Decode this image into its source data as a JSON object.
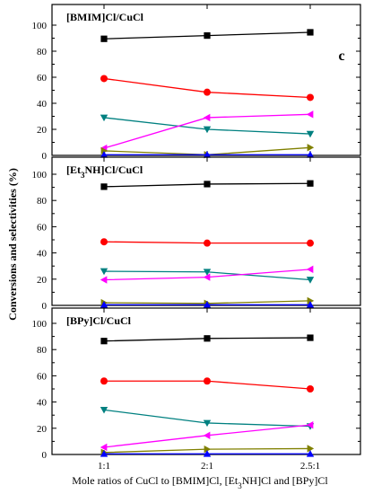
{
  "chart_data": {
    "type": "line",
    "panel_letter": "c",
    "ylabel": "Conversions and selectivities (%)",
    "xlabel": "Mole ratios of CuCl to [BMIM]Cl, [Et3NH]Cl and [BPy]Cl",
    "xlabel_parts": {
      "p1": "Mole ratios of CuCl to [BMIM]Cl, [Et",
      "sub": "3",
      "p2": "NH]Cl and [BPy]Cl"
    },
    "categories": [
      "1:1",
      "2:1",
      "2.5:1"
    ],
    "ylim": [
      0,
      110
    ],
    "yticks": [
      0,
      20,
      40,
      60,
      80,
      100
    ],
    "grid": false,
    "panels": [
      {
        "label": "[BMIM]Cl/CuCl",
        "label_parts": {
          "p1": "[BMIM]Cl/CuCl",
          "sub": "",
          "p2": ""
        },
        "series": [
          {
            "marker": "square",
            "color": "#000000",
            "values": [
              89.5,
              92.0,
              94.5
            ]
          },
          {
            "marker": "circle",
            "color": "#ff0000",
            "values": [
              59.0,
              48.5,
              44.5
            ]
          },
          {
            "marker": "triangle-down",
            "color": "#008080",
            "values": [
              29.0,
              20.0,
              16.5
            ]
          },
          {
            "marker": "triangle-left",
            "color": "#ff00ff",
            "values": [
              5.5,
              29.0,
              31.5
            ]
          },
          {
            "marker": "triangle-right",
            "color": "#808000",
            "values": [
              3.5,
              0.5,
              6.0
            ]
          },
          {
            "marker": "triangle-up",
            "color": "#0000ff",
            "values": [
              0.5,
              0.5,
              0.5
            ]
          }
        ]
      },
      {
        "label": "[Et3NH]Cl/CuCl",
        "label_parts": {
          "p1": "[Et",
          "sub": "3",
          "p2": "NH]Cl/CuCl"
        },
        "series": [
          {
            "marker": "square",
            "color": "#000000",
            "values": [
              90.5,
              92.5,
              93.0
            ]
          },
          {
            "marker": "circle",
            "color": "#ff0000",
            "values": [
              48.5,
              47.5,
              47.5
            ]
          },
          {
            "marker": "triangle-down",
            "color": "#008080",
            "values": [
              26.0,
              25.5,
              19.5
            ]
          },
          {
            "marker": "triangle-left",
            "color": "#ff00ff",
            "values": [
              19.5,
              21.5,
              27.5
            ]
          },
          {
            "marker": "triangle-right",
            "color": "#808000",
            "values": [
              2.0,
              1.5,
              3.5
            ]
          },
          {
            "marker": "triangle-up",
            "color": "#0000ff",
            "values": [
              0.5,
              0.5,
              0.5
            ]
          }
        ]
      },
      {
        "label": "[BPy]Cl/CuCl",
        "label_parts": {
          "p1": "[BPy]Cl/CuCl",
          "sub": "",
          "p2": ""
        },
        "series": [
          {
            "marker": "square",
            "color": "#000000",
            "values": [
              86.5,
              88.5,
              89.0
            ]
          },
          {
            "marker": "circle",
            "color": "#ff0000",
            "values": [
              56.0,
              56.0,
              50.0
            ]
          },
          {
            "marker": "triangle-down",
            "color": "#008080",
            "values": [
              34.0,
              24.0,
              21.5
            ]
          },
          {
            "marker": "triangle-left",
            "color": "#ff00ff",
            "values": [
              5.5,
              14.5,
              22.5
            ]
          },
          {
            "marker": "triangle-right",
            "color": "#808000",
            "values": [
              1.5,
              4.0,
              4.5
            ]
          },
          {
            "marker": "triangle-up",
            "color": "#0000ff",
            "values": [
              0.5,
              0.5,
              0.5
            ]
          }
        ]
      }
    ]
  }
}
